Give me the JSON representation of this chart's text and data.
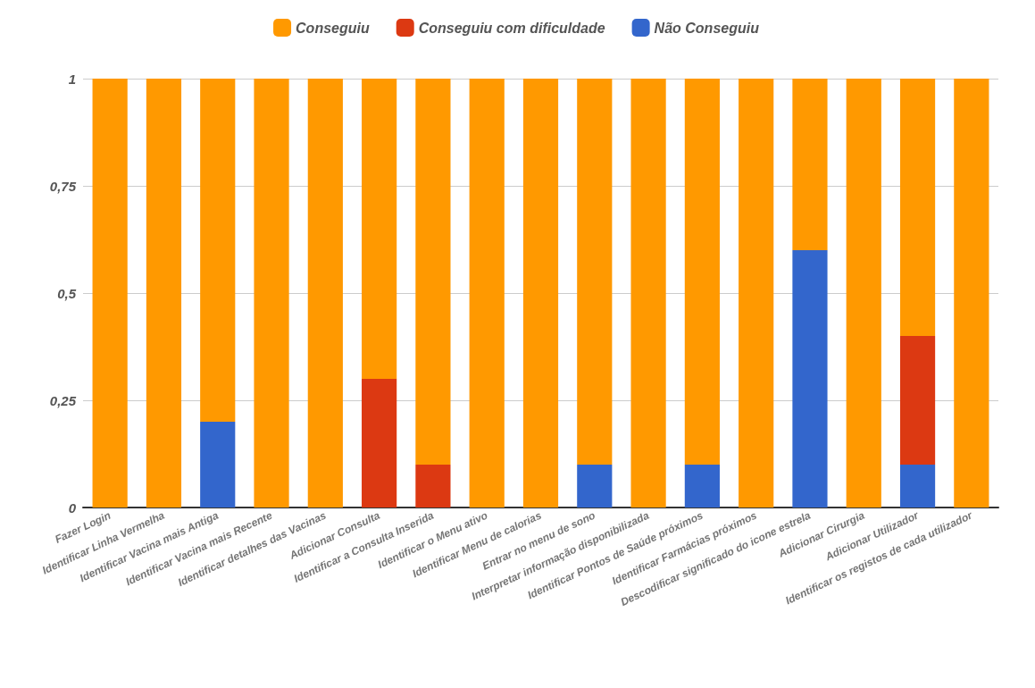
{
  "chart_data": {
    "type": "bar",
    "stacked": true,
    "legend": "top",
    "grid": "y",
    "categories": [
      "Fazer Login",
      "Identificar Linha Vermelha",
      "Identificar Vacina mais Antiga",
      "Identificar Vacina mais Recente",
      "Identificar detalhes das Vacinas",
      "Adicionar Consulta",
      "Identificar a Consulta Inserida",
      "Identificar o Menu ativo",
      "Identificar Menu de calorias",
      "Entrar no menu de sono",
      "Interpretar informação disponibilizada",
      "Identificar Pontos de Saúde próximos",
      "Identificar Farmácias próximos",
      "Descodificar significado do icone estrela",
      "Adicionar Cirurgia",
      "Adicionar Utilizador",
      "Identificar os registos de cada utilizador"
    ],
    "series": [
      {
        "name": "Não Conseguiu",
        "color": "#3366cc",
        "values": [
          0,
          0,
          0.2,
          0,
          0,
          0,
          0,
          0,
          0,
          0.1,
          0,
          0.1,
          0,
          0.6,
          0,
          0.1,
          0
        ]
      },
      {
        "name": "Conseguiu com dificuldade",
        "color": "#dc3912",
        "values": [
          0,
          0,
          0,
          0,
          0,
          0.3,
          0.1,
          0,
          0,
          0,
          0,
          0,
          0,
          0,
          0,
          0.3,
          0
        ]
      },
      {
        "name": "Conseguiu",
        "color": "#ff9900",
        "values": [
          1,
          1,
          0.8,
          1,
          1,
          0.7,
          0.9,
          1,
          1,
          0.9,
          1,
          0.9,
          1,
          0.4,
          1,
          0.6,
          1
        ]
      }
    ],
    "ylim": [
      0,
      1
    ],
    "yticks": [
      0,
      {
        "value": 0.25,
        "label": "0,25"
      },
      {
        "value": 0.5,
        "label": "0,5"
      },
      {
        "value": 0.75,
        "label": "0,75"
      },
      1
    ]
  }
}
